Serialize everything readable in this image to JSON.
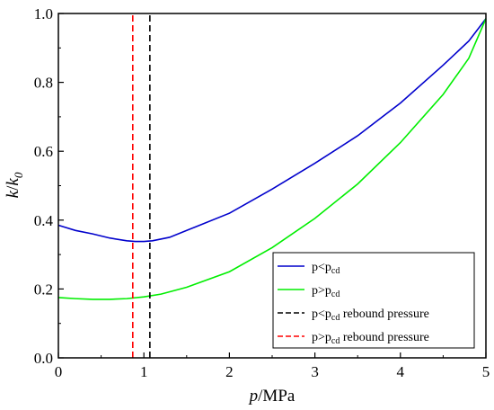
{
  "chart_data": {
    "type": "line",
    "xlabel": {
      "italic": "p",
      "rest": "/MPa"
    },
    "ylabel": {
      "italic": "k",
      "slash": "/",
      "italic2": "k",
      "sub": "0"
    },
    "xlim": [
      0,
      5
    ],
    "ylim": [
      0,
      1.0
    ],
    "xticks": [
      "0",
      "1",
      "2",
      "3",
      "4",
      "5"
    ],
    "yticks": [
      "0.0",
      "0.2",
      "0.4",
      "0.6",
      "0.8",
      "1.0"
    ],
    "xtick_values": [
      0,
      1,
      2,
      3,
      4,
      5
    ],
    "ytick_values": [
      0,
      0.2,
      0.4,
      0.6,
      0.8,
      1.0
    ],
    "grid": false,
    "legend_position": "bottom-right",
    "series": [
      {
        "legend_main": "p",
        "legend_op": "<",
        "legend_sub": "cd",
        "legend_suffix": "",
        "color": "#0000cc",
        "style": "solid",
        "x": [
          0,
          0.2,
          0.4,
          0.6,
          0.8,
          0.9,
          1.0,
          1.1,
          1.3,
          1.6,
          2.0,
          2.5,
          3.0,
          3.5,
          4.0,
          4.5,
          4.8,
          5.0
        ],
        "y": [
          0.385,
          0.37,
          0.36,
          0.348,
          0.34,
          0.338,
          0.338,
          0.34,
          0.35,
          0.38,
          0.42,
          0.49,
          0.565,
          0.645,
          0.74,
          0.85,
          0.92,
          0.985
        ]
      },
      {
        "legend_main": "p",
        "legend_op": ">",
        "legend_sub": "cd",
        "legend_suffix": "",
        "color": "#00ee00",
        "style": "solid",
        "x": [
          0,
          0.2,
          0.4,
          0.6,
          0.8,
          1.0,
          1.2,
          1.5,
          2.0,
          2.5,
          3.0,
          3.5,
          4.0,
          4.5,
          4.8,
          5.0
        ],
        "y": [
          0.175,
          0.172,
          0.17,
          0.17,
          0.172,
          0.177,
          0.185,
          0.205,
          0.25,
          0.32,
          0.405,
          0.505,
          0.625,
          0.765,
          0.87,
          0.985
        ]
      },
      {
        "legend_main": "p",
        "legend_op": "<",
        "legend_sub": "cd",
        "legend_suffix": " rebound pressure",
        "color": "#000000",
        "style": "dashed",
        "x": [
          1.07,
          1.07
        ],
        "y": [
          0,
          1.0
        ]
      },
      {
        "legend_main": "p",
        "legend_op": ">",
        "legend_sub": "cd",
        "legend_suffix": " rebound pressure",
        "color": "#ff0000",
        "style": "dashed",
        "x": [
          0.87,
          0.87
        ],
        "y": [
          0,
          1.0
        ]
      }
    ]
  }
}
